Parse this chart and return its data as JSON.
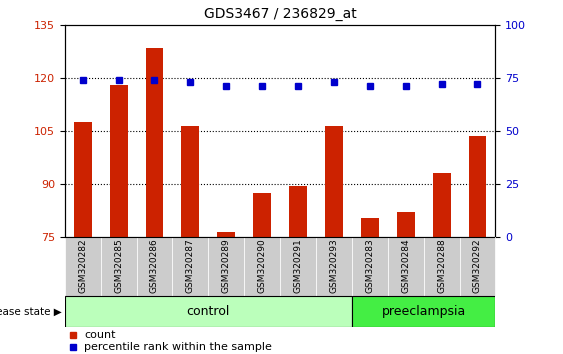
{
  "title": "GDS3467 / 236829_at",
  "samples": [
    "GSM320282",
    "GSM320285",
    "GSM320286",
    "GSM320287",
    "GSM320289",
    "GSM320290",
    "GSM320291",
    "GSM320293",
    "GSM320283",
    "GSM320284",
    "GSM320288",
    "GSM320292"
  ],
  "counts": [
    107.5,
    118.0,
    128.5,
    106.5,
    76.5,
    87.5,
    89.5,
    106.5,
    80.5,
    82.0,
    93.0,
    103.5
  ],
  "percentiles": [
    74,
    74,
    74,
    73,
    71,
    71,
    71,
    73,
    71,
    71,
    72,
    72
  ],
  "ylim_left": [
    75,
    135
  ],
  "ylim_right": [
    0,
    100
  ],
  "yticks_left": [
    75,
    90,
    105,
    120,
    135
  ],
  "yticks_right": [
    0,
    25,
    50,
    75,
    100
  ],
  "bar_color": "#cc2200",
  "dot_color": "#0000cc",
  "control_color": "#bbffbb",
  "preeclampsia_color": "#44ee44",
  "label_bg_color": "#cccccc",
  "control_label": "control",
  "preeclampsia_label": "preeclampsia",
  "disease_state_label": "disease state",
  "n_control": 8,
  "legend_count_label": "count",
  "legend_pct_label": "percentile rank within the sample"
}
